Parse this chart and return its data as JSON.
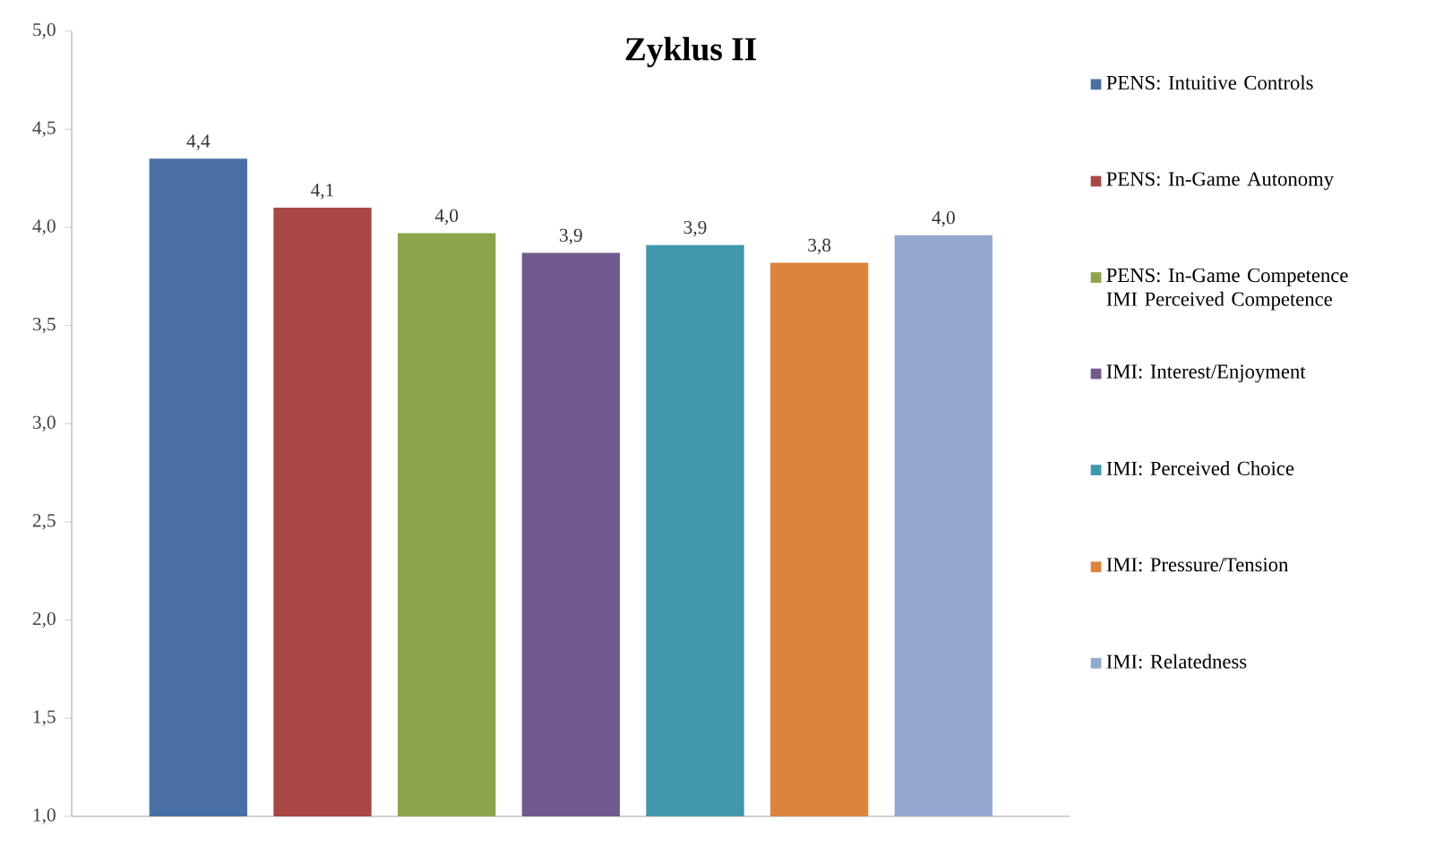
{
  "chart_data": {
    "type": "bar",
    "title": "Zyklus II",
    "categories": [
      null
    ],
    "series": [
      {
        "name": "PENS: Intuitive Controls",
        "color": "#4a6fa5",
        "values": [
          4.35
        ],
        "value_labels": [
          "4,4"
        ]
      },
      {
        "name": "PENS: In-Game Autonomy",
        "color": "#a84743",
        "values": [
          4.1
        ],
        "value_labels": [
          "4,1"
        ]
      },
      {
        "name": "PENS: In-Game Competence IMI Perceived Competence",
        "color": "#8aa54c",
        "values": [
          3.97
        ],
        "value_labels": [
          "4,0"
        ]
      },
      {
        "name": "IMI: Interest/Enjoyment",
        "color": "#71598e",
        "values": [
          3.87
        ],
        "value_labels": [
          "3,9"
        ]
      },
      {
        "name": "IMI: Perceived Choice",
        "color": "#4197ad",
        "values": [
          3.91
        ],
        "value_labels": [
          "3,9"
        ]
      },
      {
        "name": "IMI: Pressure/Tension",
        "color": "#dc843d",
        "values": [
          3.82
        ],
        "value_labels": [
          "3,8"
        ]
      },
      {
        "name": "IMI: Relatedness",
        "color": "#93a8ce",
        "values": [
          3.96
        ],
        "value_labels": [
          "4,0"
        ]
      }
    ],
    "ylim": [
      1,
      5
    ],
    "yticks": [
      {
        "value": 1,
        "label": "1,0"
      },
      {
        "value": 1.5,
        "label": "1,5"
      },
      {
        "value": 2,
        "label": "2,0"
      },
      {
        "value": 2.5,
        "label": "2,5"
      },
      {
        "value": 3,
        "label": "3,0"
      },
      {
        "value": 3.5,
        "label": "3,5"
      },
      {
        "value": 4,
        "label": "4,0"
      },
      {
        "value": 4.5,
        "label": "4,5"
      },
      {
        "value": 5,
        "label": "5,0"
      }
    ],
    "tick_labels": "y",
    "legend": "right"
  }
}
